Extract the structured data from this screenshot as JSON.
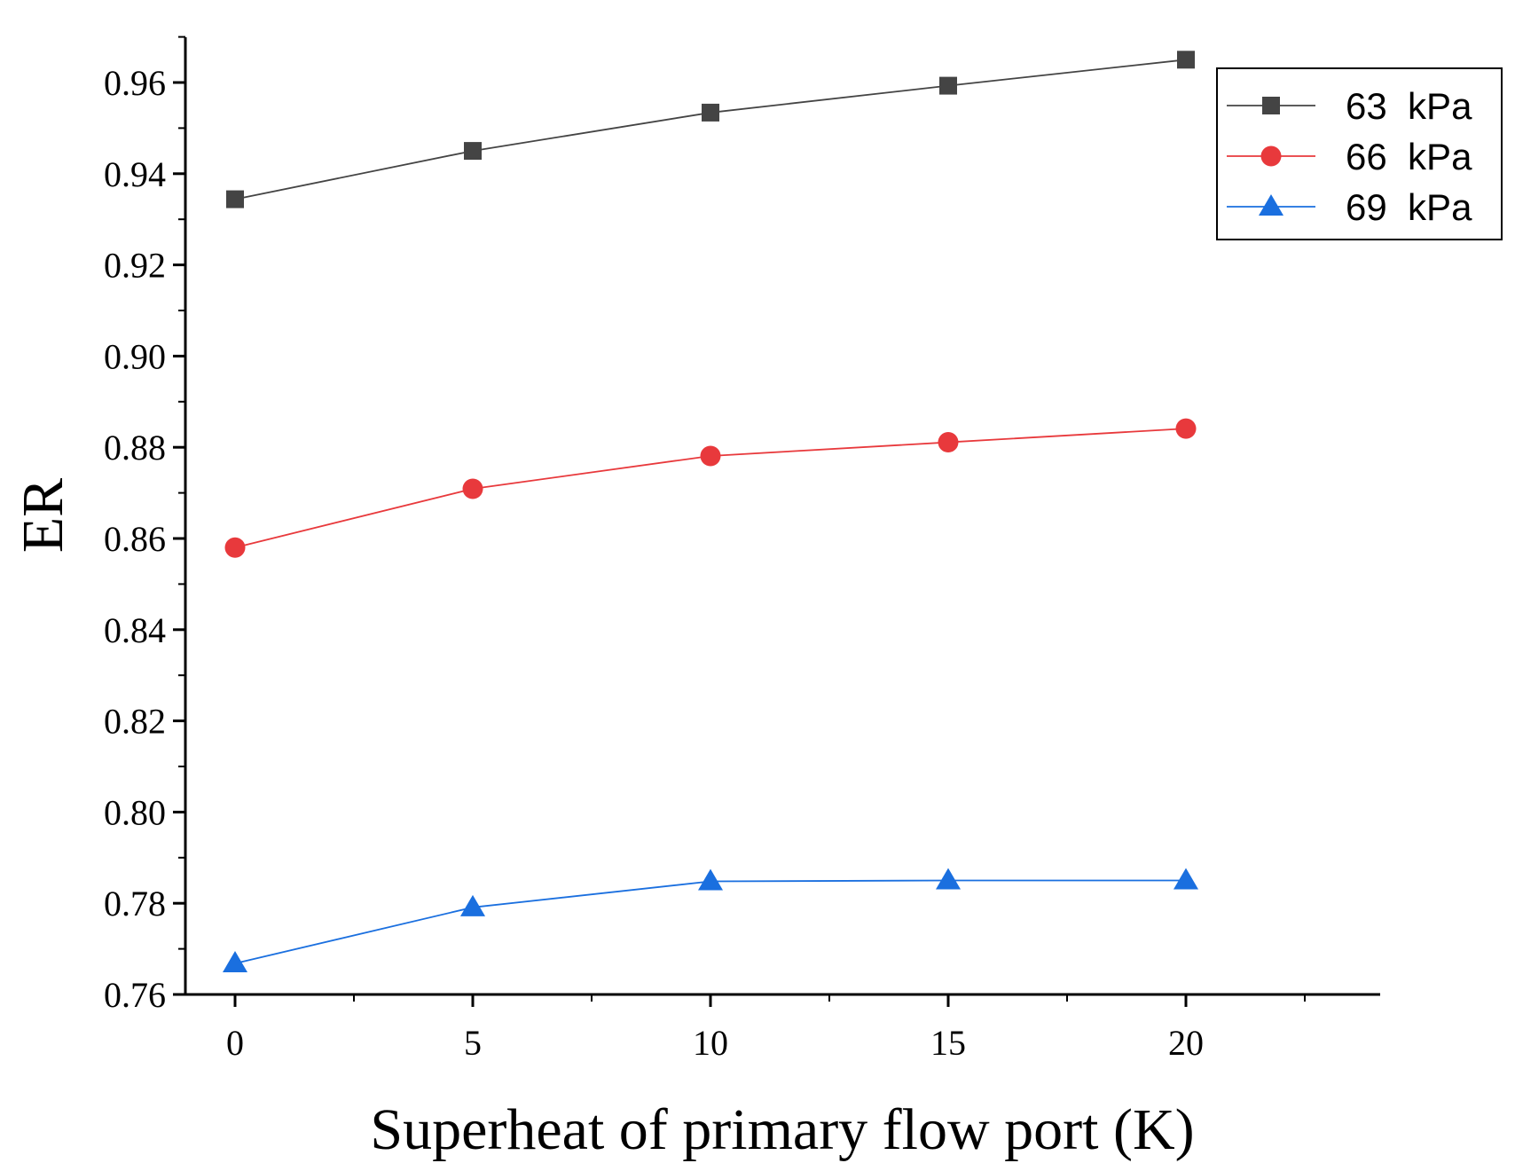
{
  "chart_data": {
    "type": "line",
    "title": "",
    "xlabel": "Superheat of primary flow port (K)",
    "ylabel": "ER",
    "x": [
      0,
      5,
      10,
      15,
      20
    ],
    "xlim": [
      -1,
      24
    ],
    "ylim": [
      0.76,
      0.97
    ],
    "xticks": [
      0,
      5,
      10,
      15,
      20
    ],
    "xtick_labels": [
      "0",
      "5",
      "10",
      "15",
      "20"
    ],
    "yticks": [
      0.76,
      0.78,
      0.8,
      0.82,
      0.84,
      0.86,
      0.88,
      0.9,
      0.92,
      0.94,
      0.96
    ],
    "ytick_labels": [
      "0.76",
      "0.78",
      "0.80",
      "0.82",
      "0.84",
      "0.86",
      "0.88",
      "0.90",
      "0.92",
      "0.94",
      "0.96"
    ],
    "grid": false,
    "legend_position": "top-right",
    "series": [
      {
        "name": "63  kPa",
        "marker": "square",
        "color": "#444444",
        "values": [
          0.9344,
          0.945,
          0.9534,
          0.9593,
          0.965
        ]
      },
      {
        "name": "66  kPa",
        "marker": "circle",
        "color": "#e8393c",
        "values": [
          0.858,
          0.8709,
          0.8781,
          0.8811,
          0.8841
        ]
      },
      {
        "name": "69  kPa",
        "marker": "triangle",
        "color": "#1a6fdf",
        "values": [
          0.7668,
          0.7791,
          0.7848,
          0.785,
          0.785
        ]
      }
    ]
  }
}
